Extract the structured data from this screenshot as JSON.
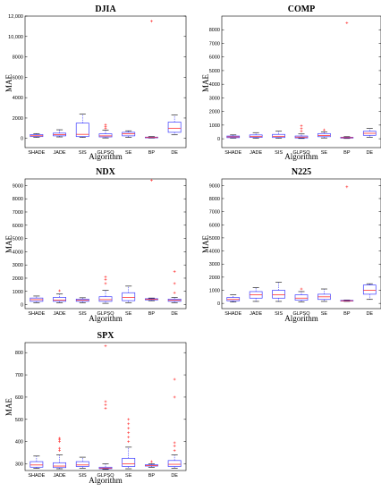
{
  "figure": {
    "ylabel": "MAE",
    "xlabel": "Algorithm"
  },
  "chart_data": [
    {
      "type": "box",
      "title": "DJIA",
      "xlabel": "Algorithm",
      "ylabel": "MAE",
      "ylim": [
        -900,
        12000
      ],
      "yticks": [
        0,
        2000,
        4000,
        6000,
        8000,
        10000,
        12000
      ],
      "ytick_labels": [
        "0",
        "2000",
        "4000",
        "6000",
        "8000",
        "10,000",
        "12,000"
      ],
      "categories": [
        "SHADE",
        "JADE",
        "SIS",
        "GLPSO",
        "SE",
        "BP",
        "DE"
      ],
      "boxes": [
        {
          "whislo": 100,
          "q1": 180,
          "med": 260,
          "q3": 380,
          "whishi": 480,
          "fliers": []
        },
        {
          "whislo": 150,
          "q1": 250,
          "med": 380,
          "q3": 520,
          "whishi": 850,
          "fliers": []
        },
        {
          "whislo": 100,
          "q1": 180,
          "med": 400,
          "q3": 1500,
          "whishi": 2400,
          "fliers": []
        },
        {
          "whislo": 50,
          "q1": 150,
          "med": 250,
          "q3": 450,
          "whishi": 800,
          "fliers": [
            1000,
            1150,
            1350
          ]
        },
        {
          "whislo": 100,
          "q1": 250,
          "med": 450,
          "q3": 600,
          "whishi": 750,
          "fliers": []
        },
        {
          "whislo": 30,
          "q1": 60,
          "med": 90,
          "q3": 130,
          "whishi": 180,
          "fliers": [
            11500
          ]
        },
        {
          "whislo": 350,
          "q1": 600,
          "med": 1000,
          "q3": 1600,
          "whishi": 2300,
          "fliers": []
        }
      ]
    },
    {
      "type": "box",
      "title": "COMP",
      "xlabel": "Algorithm",
      "ylabel": "MAE",
      "ylim": [
        -650,
        9000
      ],
      "yticks": [
        0,
        1000,
        2000,
        3000,
        4000,
        5000,
        6000,
        7000,
        8000
      ],
      "ytick_labels": [
        "0",
        "1000",
        "2000",
        "3000",
        "4000",
        "5000",
        "6000",
        "7000",
        "8000"
      ],
      "categories": [
        "SHADE",
        "JADE",
        "SIS",
        "GLPSO",
        "SE",
        "BP",
        "DE"
      ],
      "boxes": [
        {
          "whislo": 40,
          "q1": 80,
          "med": 140,
          "q3": 200,
          "whishi": 280,
          "fliers": []
        },
        {
          "whislo": 40,
          "q1": 100,
          "med": 160,
          "q3": 280,
          "whishi": 450,
          "fliers": []
        },
        {
          "whislo": 40,
          "q1": 90,
          "med": 180,
          "q3": 320,
          "whishi": 550,
          "fliers": []
        },
        {
          "whislo": 20,
          "q1": 60,
          "med": 120,
          "q3": 200,
          "whishi": 350,
          "fliers": [
            550,
            750,
            950
          ]
        },
        {
          "whislo": 60,
          "q1": 150,
          "med": 240,
          "q3": 380,
          "whishi": 500,
          "fliers": [
            650
          ]
        },
        {
          "whislo": 20,
          "q1": 50,
          "med": 80,
          "q3": 110,
          "whishi": 150,
          "fliers": [
            8500
          ]
        },
        {
          "whislo": 100,
          "q1": 250,
          "med": 400,
          "q3": 550,
          "whishi": 750,
          "fliers": []
        }
      ]
    },
    {
      "type": "box",
      "title": "NDX",
      "xlabel": "Algorithm",
      "ylabel": "MAE",
      "ylim": [
        -300,
        9500
      ],
      "yticks": [
        0,
        1000,
        2000,
        3000,
        4000,
        5000,
        6000,
        7000,
        8000,
        9000
      ],
      "ytick_labels": [
        "0",
        "1000",
        "2000",
        "3000",
        "4000",
        "5000",
        "6000",
        "7000",
        "8000",
        "9000"
      ],
      "categories": [
        "SHADE",
        "JADE",
        "SIS",
        "GLPSO",
        "SE",
        "BP",
        "DE"
      ],
      "boxes": [
        {
          "whislo": 150,
          "q1": 250,
          "med": 380,
          "q3": 500,
          "whishi": 650,
          "fliers": []
        },
        {
          "whislo": 150,
          "q1": 250,
          "med": 350,
          "q3": 550,
          "whishi": 800,
          "fliers": [
            1050
          ]
        },
        {
          "whislo": 150,
          "q1": 250,
          "med": 330,
          "q3": 420,
          "whishi": 520,
          "fliers": []
        },
        {
          "whislo": 100,
          "q1": 250,
          "med": 380,
          "q3": 600,
          "whishi": 1100,
          "fliers": [
            1600,
            1900,
            2100
          ]
        },
        {
          "whislo": 150,
          "q1": 300,
          "med": 550,
          "q3": 900,
          "whishi": 1400,
          "fliers": []
        },
        {
          "whislo": 300,
          "q1": 360,
          "med": 400,
          "q3": 450,
          "whishi": 500,
          "fliers": [
            9400
          ]
        },
        {
          "whislo": 150,
          "q1": 250,
          "med": 330,
          "q3": 420,
          "whishi": 550,
          "fliers": [
            900,
            1600,
            2500
          ]
        }
      ]
    },
    {
      "type": "box",
      "title": "N225",
      "xlabel": "Algorithm",
      "ylabel": "MAE",
      "ylim": [
        -400,
        9500
      ],
      "yticks": [
        0,
        1000,
        2000,
        3000,
        4000,
        5000,
        6000,
        7000,
        8000,
        9000
      ],
      "ytick_labels": [
        "0",
        "1000",
        "2000",
        "3000",
        "4000",
        "5000",
        "6000",
        "7000",
        "8000",
        "9000"
      ],
      "categories": [
        "SHADE",
        "JADE",
        "SIS",
        "GLPSO",
        "SE",
        "BP",
        "DE"
      ],
      "boxes": [
        {
          "whislo": 100,
          "q1": 200,
          "med": 300,
          "q3": 450,
          "whishi": 650,
          "fliers": []
        },
        {
          "whislo": 150,
          "q1": 400,
          "med": 650,
          "q3": 900,
          "whishi": 1200,
          "fliers": []
        },
        {
          "whislo": 150,
          "q1": 400,
          "med": 650,
          "q3": 1000,
          "whishi": 1600,
          "fliers": []
        },
        {
          "whislo": 100,
          "q1": 250,
          "med": 400,
          "q3": 650,
          "whishi": 900,
          "fliers": [
            1100
          ]
        },
        {
          "whislo": 150,
          "q1": 300,
          "med": 500,
          "q3": 700,
          "whishi": 1100,
          "fliers": []
        },
        {
          "whislo": 150,
          "q1": 180,
          "med": 200,
          "q3": 230,
          "whishi": 260,
          "fliers": [
            8900
          ]
        },
        {
          "whislo": 300,
          "q1": 700,
          "med": 1000,
          "q3": 1400,
          "whishi": 1500,
          "fliers": []
        }
      ]
    },
    {
      "type": "box",
      "title": "SPX",
      "xlabel": "Algorithm",
      "ylabel": "MAE",
      "ylim": [
        270,
        845
      ],
      "yticks": [
        300,
        400,
        500,
        600,
        700,
        800
      ],
      "ytick_labels": [
        "300",
        "400",
        "500",
        "600",
        "700",
        "800"
      ],
      "categories": [
        "SHADE",
        "JADE",
        "SIS",
        "GLPSO",
        "SE",
        "BP",
        "DE"
      ],
      "boxes": [
        {
          "whislo": 280,
          "q1": 285,
          "med": 295,
          "q3": 310,
          "whishi": 335,
          "fliers": []
        },
        {
          "whislo": 278,
          "q1": 283,
          "med": 290,
          "q3": 305,
          "whishi": 340,
          "fliers": [
            360,
            370,
            400,
            410,
            415
          ]
        },
        {
          "whislo": 280,
          "q1": 288,
          "med": 295,
          "q3": 310,
          "whishi": 330,
          "fliers": []
        },
        {
          "whislo": 275,
          "q1": 278,
          "med": 281,
          "q3": 285,
          "whishi": 300,
          "fliers": [
            550,
            565,
            580,
            830
          ]
        },
        {
          "whislo": 278,
          "q1": 288,
          "med": 300,
          "q3": 325,
          "whishi": 375,
          "fliers": [
            400,
            420,
            440,
            460,
            480,
            500
          ]
        },
        {
          "whislo": 285,
          "q1": 290,
          "med": 292,
          "q3": 296,
          "whishi": 300,
          "fliers": [
            310
          ]
        },
        {
          "whislo": 280,
          "q1": 288,
          "med": 298,
          "q3": 315,
          "whishi": 340,
          "fliers": [
            360,
            380,
            395,
            600,
            680
          ]
        }
      ]
    }
  ]
}
